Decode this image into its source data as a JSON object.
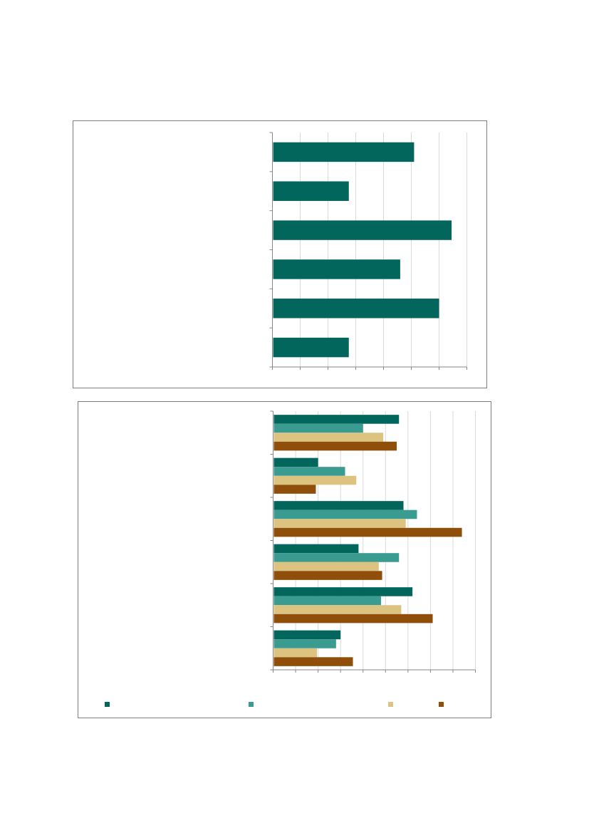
{
  "chart_data": [
    {
      "type": "bar",
      "orientation": "horizontal",
      "categories": [
        "",
        "",
        "",
        "",
        "",
        ""
      ],
      "values": [
        5.1,
        2.75,
        6.45,
        4.6,
        6.0,
        2.75
      ],
      "xlim": [
        0,
        7
      ],
      "grid": true,
      "colors": {
        "bar": "#03665d"
      }
    },
    {
      "type": "bar",
      "orientation": "horizontal",
      "categories": [
        "",
        "",
        "",
        "",
        "",
        ""
      ],
      "series": [
        {
          "values": [
            5.6,
            2.0,
            5.8,
            3.8,
            6.2,
            3.0
          ],
          "color": "#03665d"
        },
        {
          "values": [
            4.0,
            3.2,
            6.4,
            5.6,
            4.8,
            2.8
          ],
          "color": "#3a9b91"
        },
        {
          "values": [
            4.9,
            3.7,
            5.9,
            4.7,
            5.7,
            1.95
          ],
          "color": "#ddc380"
        },
        {
          "values": [
            5.5,
            1.9,
            8.4,
            4.85,
            7.1,
            3.55
          ],
          "color": "#8f4f0a"
        }
      ],
      "xlim": [
        0,
        9
      ],
      "grid": true,
      "legend_position": "bottom"
    }
  ]
}
